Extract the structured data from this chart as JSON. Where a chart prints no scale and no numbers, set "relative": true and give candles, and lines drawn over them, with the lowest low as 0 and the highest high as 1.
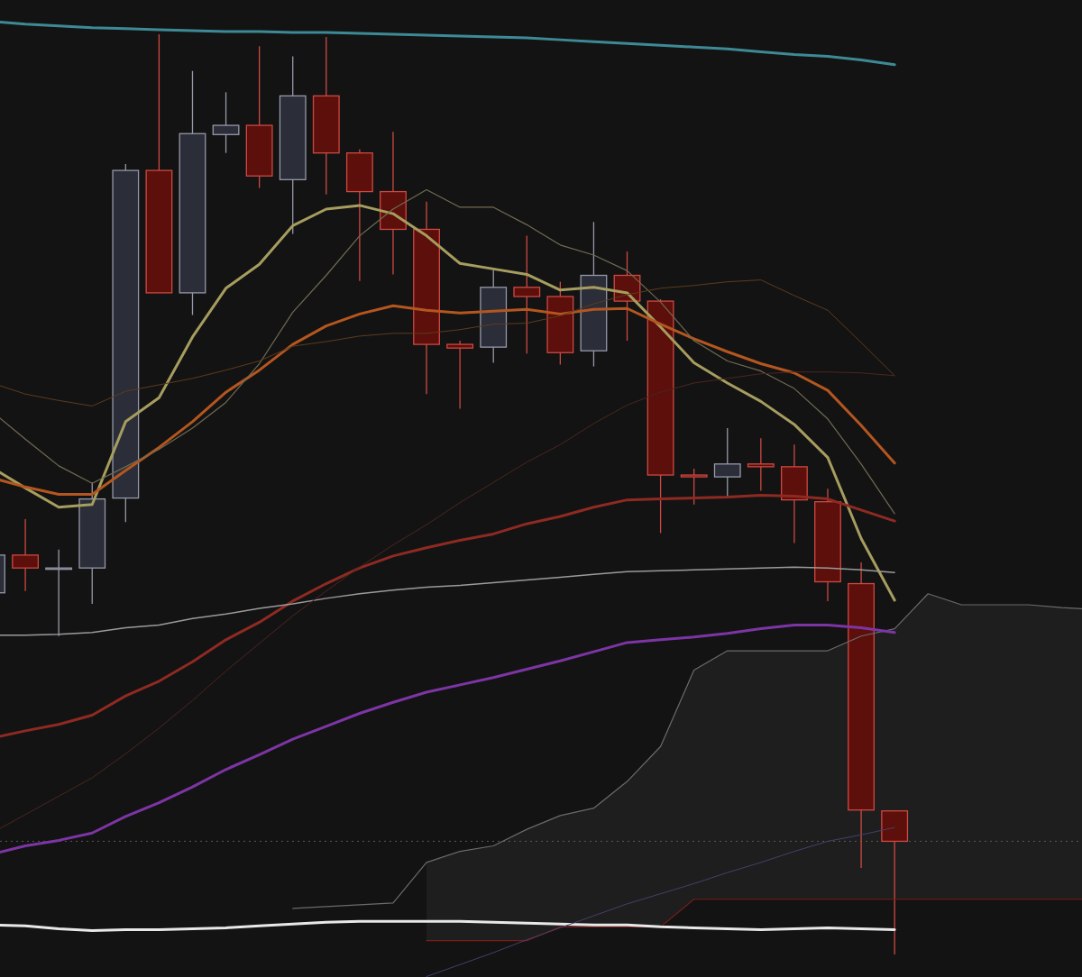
{
  "chart_data": {
    "type": "candlestick",
    "relative": true,
    "categories": [
      null,
      null,
      null,
      null,
      null,
      null,
      null,
      null,
      null,
      null,
      null,
      null,
      null,
      null,
      null,
      null,
      null,
      null,
      null,
      null,
      null,
      null,
      null,
      null,
      null,
      null,
      null,
      null,
      null,
      null,
      null,
      null,
      null,
      null
    ],
    "ohlc": [
      [
        0.393,
        0.434,
        0.393,
        0.434
      ],
      [
        0.434,
        0.473,
        0.395,
        0.42
      ],
      [
        0.419,
        0.44,
        0.346,
        0.42
      ],
      [
        0.42,
        0.513,
        0.381,
        0.495
      ],
      [
        0.496,
        0.859,
        0.47,
        0.852
      ],
      [
        0.852,
        1,
        0.719,
        0.719
      ],
      [
        0.719,
        0.96,
        0.695,
        0.892
      ],
      [
        0.891,
        0.937,
        0.871,
        0.901
      ],
      [
        0.901,
        0.987,
        0.833,
        0.846
      ],
      [
        0.842,
        0.976,
        0.783,
        0.933
      ],
      [
        0.933,
        0.997,
        0.826,
        0.871
      ],
      [
        0.871,
        0.875,
        0.732,
        0.829
      ],
      [
        0.829,
        0.894,
        0.739,
        0.788
      ],
      [
        0.788,
        0.818,
        0.609,
        0.663
      ],
      [
        0.663,
        0.667,
        0.593,
        0.659
      ],
      [
        0.66,
        0.744,
        0.643,
        0.725
      ],
      [
        0.725,
        0.781,
        0.653,
        0.715
      ],
      [
        0.715,
        0.731,
        0.641,
        0.654
      ],
      [
        0.656,
        0.796,
        0.639,
        0.738
      ],
      [
        0.738,
        0.764,
        0.667,
        0.71
      ],
      [
        0.71,
        0.712,
        0.458,
        0.521
      ],
      [
        0.521,
        0.528,
        0.489,
        0.519
      ],
      [
        0.519,
        0.572,
        0.497,
        0.533
      ],
      [
        0.533,
        0.561,
        0.504,
        0.53
      ],
      [
        0.53,
        0.554,
        0.447,
        0.494
      ],
      [
        0.492,
        0.506,
        0.384,
        0.405
      ],
      [
        0.403,
        0.426,
        0.094,
        0.157
      ],
      [
        0.156,
        0.156,
        0,
        0.123
      ],
      null,
      null,
      null,
      null,
      null,
      null
    ],
    "colors": [
      "#2b2d38",
      "#5c0f0b",
      "#2b2d38",
      "#2b2d38",
      "#2b2d38",
      "#5c0f0b",
      "#2b2d38",
      "#2b2d38",
      "#5c0f0b",
      "#2b2d38",
      "#5c0f0b",
      "#5c0f0b",
      "#5c0f0b",
      "#5c0f0b",
      "#5c0f0b",
      "#2b2d38",
      "#5c0f0b",
      "#5c0f0b",
      "#2b2d38",
      "#5c0f0b",
      "#5c0f0b",
      "#5c0f0b",
      "#2b2d38",
      "#5c0f0b",
      "#5c0f0b",
      "#5c0f0b",
      "#5c0f0b",
      "#5c0f0b",
      null,
      null,
      null,
      null,
      null,
      null
    ],
    "series": [
      {
        "type": "line",
        "color": "#6b6b6b",
        "values": [
          null,
          null,
          null,
          null,
          null,
          null,
          null,
          null,
          null,
          0.05,
          0.052,
          0.054,
          0.056,
          0.1,
          0.112,
          0.118,
          0.136,
          0.151,
          0.159,
          0.188,
          0.226,
          0.309,
          0.33,
          0.33,
          0.33,
          0.33,
          0.346,
          0.354,
          0.392,
          0.38,
          0.38,
          0.38,
          0.377,
          0.375
        ],
        "upper": [
          null,
          null,
          null,
          null,
          null,
          null,
          null,
          null,
          null,
          null,
          null,
          null,
          null,
          0.1,
          0.112,
          0.118,
          0.136,
          0.151,
          0.159,
          0.188,
          0.226,
          0.309,
          0.33,
          0.33,
          0.33,
          0.33,
          0.346,
          0.354,
          0.392,
          0.38,
          0.38,
          0.38,
          0.377,
          0.375
        ],
        "lower": [
          null,
          null,
          null,
          null,
          null,
          null,
          null,
          null,
          null,
          null,
          null,
          null,
          null,
          0.015,
          0.015,
          0.015,
          0.015,
          0.03,
          0.03,
          0.03,
          0.03,
          0.06,
          0.06,
          0.06,
          0.06,
          0.06,
          0.06,
          0.06,
          0.06,
          0.06,
          0.06,
          0.06,
          0.06,
          0.06
        ]
      },
      {
        "type": "line",
        "color": "#7a1d19",
        "values": [
          null,
          null,
          null,
          null,
          null,
          null,
          null,
          null,
          null,
          null,
          null,
          null,
          null,
          0.015,
          0.015,
          0.015,
          0.015,
          0.03,
          0.03,
          0.03,
          0.03,
          0.06,
          0.06,
          0.06,
          0.06,
          0.06,
          0.06,
          0.06,
          0.06,
          0.06,
          0.06,
          0.06,
          0.06,
          0.06
        ]
      },
      {
        "type": "line",
        "color": "#3d8a96",
        "values": [
          1.014,
          1.011,
          1.009,
          1.007,
          1.006,
          1.005,
          1.004,
          1.003,
          1.003,
          1.002,
          1.002,
          1.001,
          1.0,
          0.999,
          0.998,
          0.997,
          0.996,
          0.994,
          0.992,
          0.99,
          0.988,
          0.986,
          0.984,
          0.981,
          0.978,
          0.976,
          0.972,
          0.967,
          null,
          null,
          null,
          null,
          null,
          null
        ]
      },
      {
        "type": "line",
        "color": "#a69d5f",
        "values": [
          0.529,
          0.507,
          0.486,
          0.489,
          0.579,
          0.605,
          0.671,
          0.724,
          0.75,
          0.792,
          0.81,
          0.814,
          0.805,
          0.781,
          0.751,
          0.745,
          0.739,
          0.722,
          0.725,
          0.719,
          0.682,
          0.643,
          0.621,
          0.601,
          0.576,
          0.54,
          0.452,
          0.385,
          null,
          null,
          null,
          null,
          null,
          null
        ]
      },
      {
        "type": "line",
        "color": "#b4561f",
        "values": [
          0.518,
          0.508,
          0.5,
          0.5,
          0.526,
          0.551,
          0.579,
          0.611,
          0.635,
          0.663,
          0.683,
          0.696,
          0.705,
          0.7,
          0.697,
          0.699,
          0.701,
          0.696,
          0.701,
          0.702,
          0.685,
          0.669,
          0.655,
          0.642,
          0.632,
          0.613,
          0.575,
          0.534,
          null,
          null,
          null,
          null,
          null,
          null
        ]
      },
      {
        "type": "line",
        "color": "#8f2a22",
        "values": [
          0.235,
          0.243,
          0.25,
          0.26,
          0.281,
          0.297,
          0.318,
          0.342,
          0.361,
          0.384,
          0.403,
          0.42,
          0.433,
          0.442,
          0.45,
          0.457,
          0.468,
          0.476,
          0.486,
          0.494,
          0.495,
          0.496,
          0.497,
          0.499,
          0.498,
          0.495,
          0.483,
          0.471,
          null,
          null,
          null,
          null,
          null,
          null
        ]
      },
      {
        "type": "line",
        "color": "#7d35a5",
        "values": [
          0.109,
          0.118,
          0.124,
          0.132,
          0.15,
          0.165,
          0.182,
          0.201,
          0.217,
          0.234,
          0.248,
          0.262,
          0.274,
          0.285,
          0.293,
          0.301,
          0.31,
          0.319,
          0.329,
          0.339,
          0.342,
          0.345,
          0.349,
          0.354,
          0.358,
          0.358,
          0.355,
          0.35,
          null,
          null,
          null,
          null,
          null,
          null
        ]
      },
      {
        "type": "line",
        "color": "#e8e8e8",
        "values": [
          0.032,
          0.031,
          0.028,
          0.026,
          0.027,
          0.027,
          0.028,
          0.029,
          0.031,
          0.033,
          0.035,
          0.036,
          0.036,
          0.036,
          0.036,
          0.035,
          0.034,
          0.033,
          0.032,
          0.032,
          0.03,
          0.029,
          0.028,
          0.027,
          0.028,
          0.029,
          0.028,
          0.027,
          null,
          null,
          null,
          null,
          null,
          null
        ]
      },
      {
        "type": "line",
        "color": "#9b9b9b",
        "values": [
          0.347,
          0.347,
          0.348,
          0.35,
          0.355,
          0.358,
          0.365,
          0.37,
          0.376,
          0.381,
          0.387,
          0.392,
          0.396,
          0.399,
          0.401,
          0.404,
          0.407,
          0.41,
          0.413,
          0.416,
          0.417,
          0.418,
          0.419,
          0.42,
          0.421,
          0.42,
          0.418,
          0.415,
          null,
          null,
          null,
          null,
          null,
          null
        ]
      },
      {
        "type": "line",
        "color": "#716b52",
        "values": [
          0.59,
          0.56,
          0.531,
          0.512,
          0.53,
          0.549,
          0.572,
          0.6,
          0.642,
          0.698,
          0.738,
          0.781,
          0.81,
          0.831,
          0.812,
          0.812,
          0.793,
          0.771,
          0.76,
          0.743,
          0.709,
          0.667,
          0.645,
          0.634,
          0.615,
          0.582,
          0.533,
          0.479,
          null,
          null,
          null,
          null,
          null,
          null
        ]
      },
      {
        "type": "line",
        "color": "#5e3b1d",
        "values": [
          0.621,
          0.609,
          0.602,
          0.596,
          0.612,
          0.619,
          0.626,
          0.635,
          0.645,
          0.661,
          0.666,
          0.672,
          0.675,
          0.675,
          0.679,
          0.685,
          0.686,
          0.694,
          0.707,
          0.717,
          0.724,
          0.727,
          0.731,
          0.733,
          0.716,
          0.7,
          0.665,
          0.629,
          null,
          null,
          null,
          null,
          null,
          null
        ]
      },
      {
        "type": "line",
        "color": "#4d2520",
        "values": [
          0.132,
          0.152,
          0.172,
          0.192,
          0.218,
          0.246,
          0.276,
          0.308,
          0.338,
          0.368,
          0.395,
          0.421,
          0.445,
          0.467,
          0.491,
          0.513,
          0.535,
          0.554,
          0.577,
          0.597,
          0.611,
          0.621,
          0.626,
          0.631,
          0.633,
          0.633,
          0.632,
          0.629,
          null,
          null,
          null,
          null,
          null,
          null
        ]
      },
      {
        "type": "line",
        "color": "#473f6b",
        "values": [
          null,
          null,
          null,
          null,
          null,
          null,
          null,
          null,
          null,
          null,
          null,
          null,
          null,
          -0.024,
          -0.011,
          0.002,
          0.016,
          0.029,
          0.042,
          0.055,
          0.066,
          0.077,
          0.089,
          0.1,
          0.112,
          0.123,
          0.13,
          0.138,
          null,
          null,
          null,
          null,
          null,
          null
        ]
      }
    ],
    "ref_lines": [
      {
        "axis": "y",
        "value": 0.123,
        "color": "#5a5a5a",
        "line_style": "dotted"
      }
    ]
  }
}
